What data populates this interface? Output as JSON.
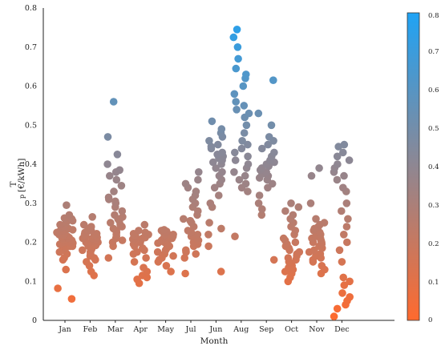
{
  "chart_data": {
    "type": "scatter",
    "title": "",
    "xlabel": "Month",
    "ylabel_main": "T",
    "ylabel_sub": "p",
    "ylabel_unit": "[€/kWh]",
    "ylim": [
      0,
      0.8
    ],
    "y_ticks": [
      "0",
      "0.1",
      "0.2",
      "0.3",
      "0.4",
      "0.5",
      "0.6",
      "0.7",
      "0.8"
    ],
    "categories": [
      "Jan",
      "Feb",
      "Mar",
      "Apr",
      "May",
      "Jul",
      "Jun",
      "Aug",
      "Sep",
      "Oct",
      "Nov",
      "Dec"
    ],
    "colorbar": {
      "low_color": "#ff6a2e",
      "high_color": "#1fa3f5",
      "range": [
        0,
        0.8
      ],
      "ticks": [
        "0",
        "0.1",
        "0.2",
        "0.3",
        "0.4",
        "0.5",
        "0.6",
        "0.7",
        "0.8"
      ]
    },
    "series": [
      {
        "category": "Jan",
        "values": [
          0.055,
          0.082,
          0.13,
          0.155,
          0.16,
          0.17,
          0.175,
          0.18,
          0.185,
          0.19,
          0.19,
          0.195,
          0.198,
          0.2,
          0.2,
          0.205,
          0.205,
          0.21,
          0.21,
          0.212,
          0.215,
          0.215,
          0.218,
          0.22,
          0.22,
          0.222,
          0.225,
          0.228,
          0.23,
          0.232,
          0.235,
          0.238,
          0.24,
          0.245,
          0.25,
          0.255,
          0.26,
          0.262,
          0.27,
          0.295
        ]
      },
      {
        "category": "Feb",
        "values": [
          0.115,
          0.125,
          0.14,
          0.15,
          0.155,
          0.16,
          0.165,
          0.17,
          0.175,
          0.18,
          0.182,
          0.185,
          0.19,
          0.192,
          0.195,
          0.198,
          0.2,
          0.2,
          0.202,
          0.205,
          0.208,
          0.21,
          0.21,
          0.212,
          0.215,
          0.218,
          0.22,
          0.222,
          0.225,
          0.228,
          0.23,
          0.232,
          0.235,
          0.24,
          0.245,
          0.265
        ]
      },
      {
        "category": "Mar",
        "values": [
          0.16,
          0.19,
          0.2,
          0.205,
          0.21,
          0.215,
          0.22,
          0.225,
          0.23,
          0.235,
          0.24,
          0.245,
          0.25,
          0.255,
          0.26,
          0.265,
          0.27,
          0.28,
          0.29,
          0.3,
          0.305,
          0.31,
          0.315,
          0.33,
          0.345,
          0.36,
          0.37,
          0.38,
          0.385,
          0.4,
          0.425,
          0.47,
          0.56
        ]
      },
      {
        "category": "Apr",
        "values": [
          0.095,
          0.105,
          0.11,
          0.115,
          0.125,
          0.135,
          0.15,
          0.16,
          0.17,
          0.175,
          0.18,
          0.185,
          0.19,
          0.195,
          0.198,
          0.2,
          0.202,
          0.205,
          0.208,
          0.21,
          0.21,
          0.212,
          0.215,
          0.215,
          0.218,
          0.22,
          0.222,
          0.225,
          0.23,
          0.245
        ]
      },
      {
        "category": "May",
        "values": [
          0.125,
          0.14,
          0.15,
          0.155,
          0.16,
          0.165,
          0.17,
          0.175,
          0.18,
          0.185,
          0.19,
          0.195,
          0.198,
          0.2,
          0.202,
          0.205,
          0.205,
          0.208,
          0.21,
          0.21,
          0.212,
          0.215,
          0.215,
          0.218,
          0.22,
          0.22,
          0.222,
          0.225,
          0.228,
          0.23,
          0.232
        ]
      },
      {
        "category": "Jul",
        "values": [
          0.12,
          0.16,
          0.17,
          0.175,
          0.18,
          0.19,
          0.195,
          0.2,
          0.205,
          0.21,
          0.215,
          0.22,
          0.225,
          0.23,
          0.24,
          0.25,
          0.255,
          0.26,
          0.27,
          0.28,
          0.29,
          0.3,
          0.31,
          0.32,
          0.33,
          0.34,
          0.35,
          0.36,
          0.38
        ]
      },
      {
        "category": "Jun",
        "values": [
          0.125,
          0.19,
          0.22,
          0.235,
          0.25,
          0.29,
          0.3,
          0.32,
          0.34,
          0.35,
          0.36,
          0.37,
          0.38,
          0.39,
          0.4,
          0.405,
          0.41,
          0.415,
          0.42,
          0.425,
          0.43,
          0.44,
          0.445,
          0.45,
          0.46,
          0.47,
          0.48,
          0.49,
          0.51
        ]
      },
      {
        "category": "Aug",
        "values": [
          0.215,
          0.33,
          0.34,
          0.35,
          0.36,
          0.37,
          0.38,
          0.39,
          0.4,
          0.41,
          0.42,
          0.43,
          0.44,
          0.45,
          0.46,
          0.48,
          0.5,
          0.52,
          0.53,
          0.54,
          0.55,
          0.56,
          0.58,
          0.6,
          0.62,
          0.63,
          0.645,
          0.67,
          0.7,
          0.725,
          0.745
        ]
      },
      {
        "category": "Sep",
        "values": [
          0.155,
          0.27,
          0.285,
          0.3,
          0.32,
          0.34,
          0.35,
          0.36,
          0.365,
          0.37,
          0.375,
          0.38,
          0.385,
          0.39,
          0.395,
          0.4,
          0.405,
          0.41,
          0.42,
          0.43,
          0.44,
          0.45,
          0.46,
          0.47,
          0.5,
          0.53,
          0.615
        ]
      },
      {
        "category": "Oct",
        "values": [
          0.1,
          0.11,
          0.12,
          0.125,
          0.13,
          0.135,
          0.14,
          0.145,
          0.15,
          0.155,
          0.16,
          0.165,
          0.17,
          0.175,
          0.18,
          0.185,
          0.19,
          0.195,
          0.2,
          0.205,
          0.21,
          0.22,
          0.23,
          0.24,
          0.25,
          0.26,
          0.27,
          0.28,
          0.29,
          0.3
        ]
      },
      {
        "category": "Nov",
        "values": [
          0.12,
          0.13,
          0.14,
          0.15,
          0.155,
          0.16,
          0.165,
          0.17,
          0.175,
          0.18,
          0.185,
          0.19,
          0.195,
          0.2,
          0.2,
          0.205,
          0.21,
          0.21,
          0.215,
          0.22,
          0.225,
          0.23,
          0.235,
          0.24,
          0.245,
          0.25,
          0.26,
          0.3,
          0.37,
          0.39
        ]
      },
      {
        "category": "Dec",
        "values": [
          0.01,
          0.03,
          0.04,
          0.05,
          0.06,
          0.07,
          0.09,
          0.1,
          0.11,
          0.15,
          0.18,
          0.2,
          0.22,
          0.24,
          0.26,
          0.28,
          0.3,
          0.33,
          0.34,
          0.36,
          0.37,
          0.38,
          0.39,
          0.4,
          0.41,
          0.42,
          0.43,
          0.445,
          0.45
        ]
      }
    ]
  }
}
